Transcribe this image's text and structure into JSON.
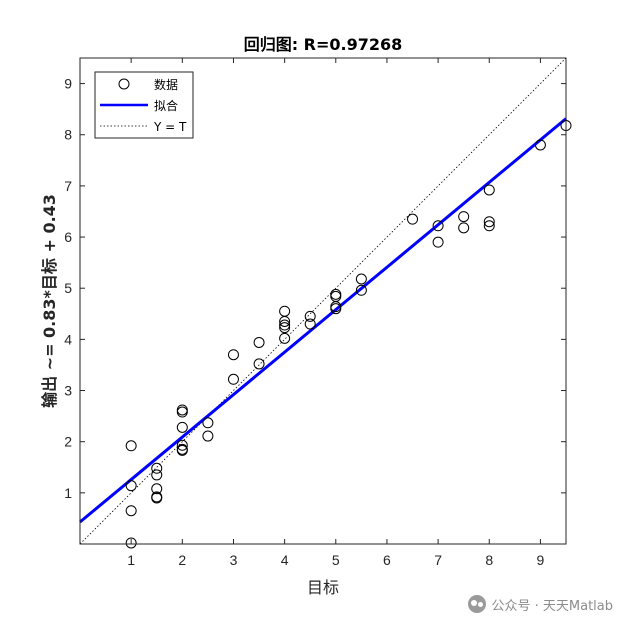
{
  "chart_data": {
    "type": "scatter",
    "title": "回归图: R=0.97268",
    "xlabel": "目标",
    "ylabel": "输出 ~= 0.83*目标 + 0.43",
    "xlim": [
      0,
      9.5
    ],
    "ylim": [
      0,
      9.5
    ],
    "xticks": [
      "1",
      "2",
      "3",
      "4",
      "5",
      "6",
      "7",
      "8",
      "9"
    ],
    "yticks": [
      "1",
      "2",
      "3",
      "4",
      "5",
      "6",
      "7",
      "8",
      "9"
    ],
    "grid": false,
    "legend_position": "top-left",
    "legend": [
      "数据",
      "拟合",
      "Y = T"
    ],
    "fit": {
      "slope": 0.83,
      "intercept": 0.43,
      "color": "#0000ff"
    },
    "identity_line_color": "#000000",
    "marker_color": "#000000",
    "x": [
      1,
      1,
      1,
      1,
      1.5,
      1.5,
      1.5,
      1.5,
      1.5,
      2,
      2,
      2,
      2,
      2,
      2,
      2.5,
      2.5,
      3,
      3,
      3.5,
      3.5,
      4,
      4,
      4,
      4,
      4,
      4.5,
      4.5,
      5,
      5,
      5,
      5,
      5.5,
      5.5,
      6.5,
      7,
      7,
      7.5,
      7.5,
      8,
      8,
      8,
      9,
      9.5
    ],
    "y": [
      1.92,
      1.14,
      0.65,
      0.02,
      1.48,
      1.35,
      1.08,
      0.9,
      0.92,
      2.62,
      2.58,
      2.28,
      1.93,
      1.83,
      1.85,
      2.37,
      2.11,
      3.7,
      3.22,
      3.94,
      3.52,
      4.55,
      4.35,
      4.28,
      4.23,
      4.02,
      4.45,
      4.3,
      4.88,
      4.84,
      4.64,
      4.6,
      5.18,
      4.96,
      6.35,
      6.22,
      5.9,
      6.4,
      6.18,
      6.92,
      6.3,
      6.22,
      7.8,
      8.18
    ]
  },
  "watermark": {
    "text": "公众号 · 天天Matlab"
  }
}
